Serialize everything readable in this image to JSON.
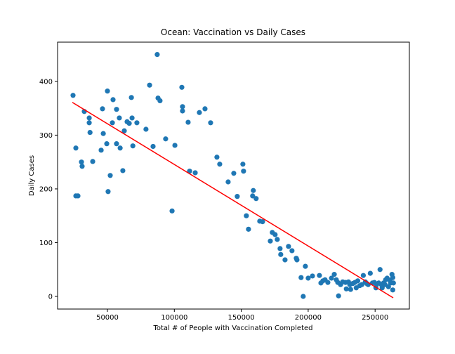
{
  "chart_data": {
    "type": "scatter",
    "title": "Ocean: Vaccination vs Daily Cases",
    "xlabel": "Total # of People with Vaccination Completed",
    "ylabel": "Daily Cases",
    "xlim": [
      12750,
      275600
    ],
    "ylim": [
      -23.5,
      473
    ],
    "xticks": [
      50000,
      100000,
      150000,
      200000,
      250000
    ],
    "yticks": [
      0,
      100,
      200,
      300,
      400
    ],
    "series": [
      {
        "color": "#1f77b4",
        "x": [
          24300,
          26400,
          26400,
          27970,
          30600,
          31100,
          32700,
          36400,
          36400,
          37000,
          39000,
          45300,
          46300,
          46900,
          50000,
          49500,
          50500,
          52100,
          53700,
          54200,
          56800,
          56800,
          58900,
          59500,
          61500,
          62600,
          64700,
          66300,
          67900,
          68400,
          69000,
          72000,
          78800,
          81500,
          84100,
          87200,
          87800,
          89300,
          93500,
          98300,
          100400,
          105600,
          106100,
          106100,
          110300,
          111400,
          115600,
          118700,
          122900,
          127100,
          131800,
          133900,
          140200,
          144400,
          147000,
          151200,
          151700,
          153800,
          155400,
          158500,
          159000,
          161100,
          163800,
          165900,
          171700,
          173200,
          175300,
          176900,
          179000,
          179500,
          182700,
          185300,
          187900,
          191100,
          191600,
          194700,
          196300,
          197900,
          200000,
          203200,
          208400,
          209500,
          211000,
          212600,
          214700,
          217400,
          219500,
          221000,
          222100,
          222700,
          224200,
          225800,
          227900,
          228500,
          230100,
          231100,
          231700,
          233300,
          234900,
          235900,
          237000,
          238500,
          240100,
          241200,
          242700,
          243800,
          244800,
          246400,
          248000,
          249500,
          250600,
          251100,
          252700,
          253700,
          254700,
          255300,
          256300,
          257400,
          257900,
          259000,
          260000,
          261100,
          261600,
          262600,
          263200,
          263200,
          263700
        ],
        "values": [
          374,
          276,
          187,
          187,
          250,
          242,
          344,
          332,
          323,
          305,
          251,
          272,
          349,
          303,
          382,
          284,
          195,
          225,
          323,
          366,
          348,
          284,
          332,
          276,
          234,
          308,
          325,
          322,
          370,
          332,
          280,
          323,
          311,
          393,
          279,
          450,
          369,
          364,
          293,
          159,
          281,
          389,
          353,
          345,
          324,
          233,
          230,
          342,
          349,
          323,
          259,
          246,
          213,
          229,
          186,
          246,
          233,
          150,
          125,
          187,
          197,
          182,
          140,
          139,
          103,
          119,
          115,
          106,
          89,
          78,
          68,
          93,
          85,
          71,
          68,
          35,
          0,
          56,
          34,
          38,
          39,
          25,
          29,
          31,
          26,
          34,
          41,
          31,
          26,
          1,
          22,
          27,
          26,
          14,
          27,
          22,
          13,
          24,
          26,
          16,
          29,
          20,
          22,
          39,
          27,
          24,
          22,
          43,
          25,
          26,
          16,
          22,
          25,
          50,
          22,
          16,
          25,
          22,
          31,
          34,
          18,
          30,
          25,
          41,
          12,
          35,
          25
        ]
      }
    ],
    "trend_line": {
      "color": "#ff0000",
      "x": [
        23770,
        263540
      ],
      "values": [
        361,
        -2.6
      ]
    }
  }
}
